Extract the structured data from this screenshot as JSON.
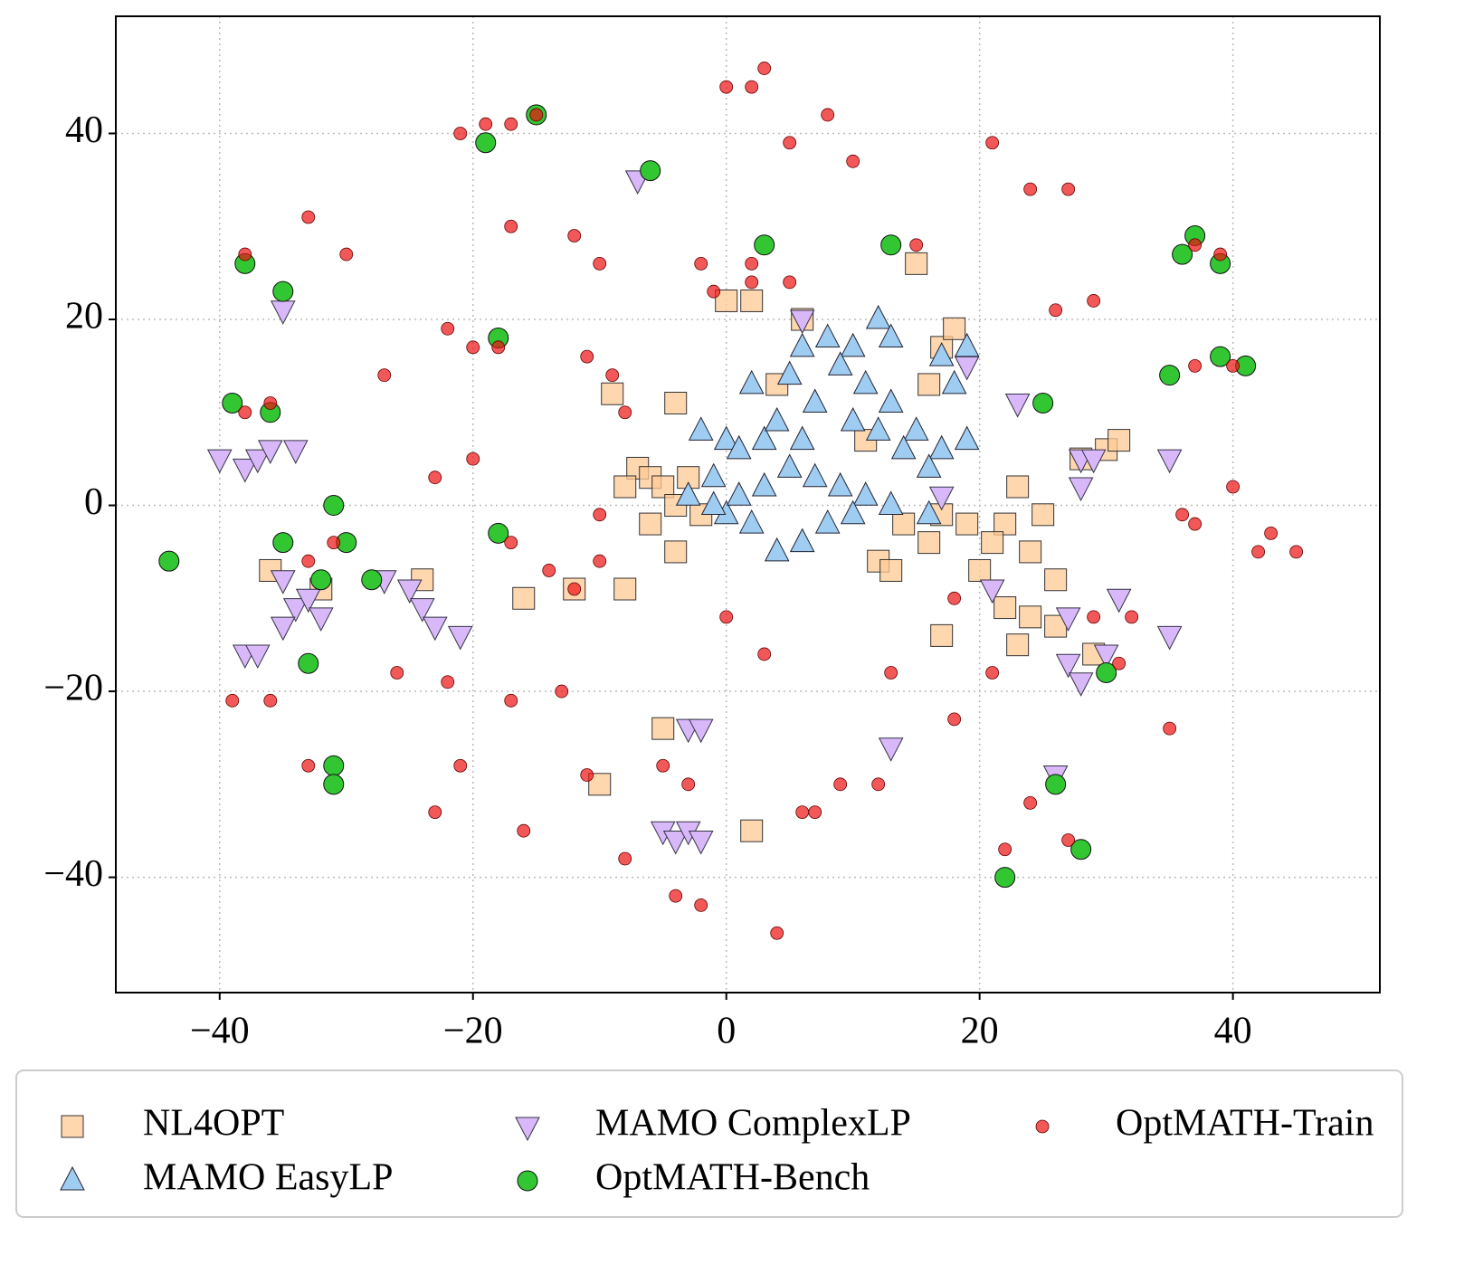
{
  "chart_data": {
    "type": "scatter",
    "xlim": [
      -48.2,
      51.6
    ],
    "ylim": [
      -52.4,
      52.6
    ],
    "xticks": [
      {
        "value": -40,
        "label": "−40"
      },
      {
        "value": -20,
        "label": "−20"
      },
      0,
      20,
      40
    ],
    "yticks": [
      {
        "value": -40,
        "label": "−40"
      },
      {
        "value": -20,
        "label": "−20"
      },
      0,
      20,
      40
    ],
    "grid": true,
    "legend": "bottom",
    "series": [
      {
        "name": "NL4OPT",
        "color": "#ffc994",
        "marker": "square",
        "x": [
          -7,
          -6,
          -5,
          -4,
          -6,
          -3,
          -8,
          -4,
          -8,
          -9,
          -4,
          0,
          2,
          6,
          4,
          11,
          17,
          18,
          16,
          22,
          23,
          24,
          25,
          26,
          20,
          21,
          19,
          16,
          17,
          14,
          12,
          13,
          22,
          24,
          23,
          26,
          17,
          29,
          28,
          30,
          31,
          -16,
          -12,
          -10,
          -5,
          2,
          -24,
          -32,
          -36,
          -2,
          15
        ],
        "values": [
          4,
          3,
          2,
          0,
          -2,
          3,
          2,
          -5,
          -9,
          12,
          11,
          22,
          22,
          20,
          13,
          7,
          17,
          19,
          13,
          -2,
          2,
          -5,
          -1,
          -8,
          -7,
          -4,
          -2,
          -4,
          -1,
          -2,
          -6,
          -7,
          -11,
          -12,
          -15,
          -13,
          -14,
          -16,
          5,
          6,
          7,
          -10,
          -9,
          -30,
          -24,
          -35,
          -8,
          -9,
          -7,
          -1,
          26
        ]
      },
      {
        "name": "MAMO EasyLP",
        "color": "#9fcdf2",
        "marker": "triangle-up",
        "x": [
          -2,
          0,
          1,
          3,
          4,
          2,
          5,
          6,
          8,
          10,
          12,
          13,
          9,
          11,
          13,
          12,
          10,
          7,
          6,
          5,
          7,
          9,
          11,
          13,
          10,
          8,
          6,
          4,
          2,
          0,
          -1,
          -3,
          -1,
          17,
          19,
          18,
          15,
          17,
          19,
          16,
          14,
          16,
          3,
          1
        ],
        "values": [
          8,
          7,
          6,
          7,
          9,
          13,
          14,
          17,
          18,
          17,
          20,
          18,
          15,
          13,
          11,
          8,
          9,
          11,
          7,
          4,
          3,
          2,
          1,
          0,
          -1,
          -2,
          -4,
          -5,
          -2,
          -1,
          0,
          1,
          3,
          16,
          17,
          13,
          8,
          6,
          7,
          -1,
          6,
          4,
          2,
          1
        ]
      },
      {
        "name": "MAMO ComplexLP",
        "color": "#d9b8fa",
        "marker": "triangle-down",
        "x": [
          -40,
          -38,
          -37,
          -36,
          -34,
          -35,
          -34,
          -33,
          -32,
          -35,
          -38,
          -37,
          -25,
          -24,
          -23,
          -21,
          -27,
          -7,
          -35,
          -5,
          -4,
          -3,
          -2,
          -3,
          -2,
          13,
          19,
          23,
          28,
          29,
          35,
          28,
          21,
          27,
          27,
          28,
          30,
          31,
          35,
          26,
          6,
          17
        ],
        "values": [
          5,
          4,
          5,
          6,
          6,
          -8,
          -11,
          -10,
          -12,
          -13,
          -16,
          -16,
          -9,
          -11,
          -13,
          -14,
          -8,
          35,
          21,
          -35,
          -36,
          -35,
          -36,
          -24,
          -24,
          -26,
          15,
          11,
          5,
          5,
          5,
          2,
          -9,
          -12,
          -17,
          -19,
          -16,
          -10,
          -14,
          -29,
          20,
          1
        ]
      },
      {
        "name": "OptMATH-Bench",
        "color": "#33c633",
        "marker": "circle",
        "x": [
          -19,
          -15,
          -6,
          3,
          13,
          25,
          37,
          36,
          39,
          35,
          39,
          41,
          -39,
          -36,
          -35,
          -38,
          -31,
          -35,
          -30,
          -32,
          -28,
          -44,
          -33,
          -31,
          -31,
          -18,
          22,
          26,
          28,
          30,
          -18
        ],
        "values": [
          39,
          42,
          36,
          28,
          28,
          11,
          29,
          27,
          26,
          14,
          16,
          15,
          11,
          10,
          23,
          26,
          0,
          -4,
          -4,
          -8,
          -8,
          -6,
          -17,
          -28,
          -30,
          -3,
          -40,
          -30,
          -37,
          -18,
          18
        ]
      },
      {
        "name": "OptMATH-Train",
        "color": "#ee1111",
        "marker": "dot",
        "x": [
          -19,
          -17,
          -15,
          -21,
          2,
          0,
          3,
          8,
          10,
          5,
          21,
          24,
          27,
          26,
          29,
          37,
          39,
          37,
          40,
          40,
          43,
          45,
          37,
          29,
          31,
          35,
          24,
          22,
          27,
          18,
          21,
          18,
          13,
          9,
          7,
          0,
          3,
          -2,
          -4,
          4,
          -5,
          -3,
          -11,
          -13,
          -17,
          -23,
          -16,
          -22,
          -26,
          -33,
          -39,
          -36,
          -33,
          -31,
          -38,
          -36,
          -38,
          -33,
          -30,
          -22,
          -20,
          -20,
          -23,
          -17,
          -14,
          -12,
          -10,
          -9,
          -11,
          -8,
          -10,
          -17,
          -12,
          -10,
          2,
          5,
          -2,
          15,
          -27,
          -18,
          6,
          12,
          -21,
          -8,
          36,
          42,
          32,
          2,
          -1
        ],
        "values": [
          41,
          41,
          42,
          40,
          45,
          45,
          47,
          42,
          37,
          39,
          39,
          34,
          34,
          21,
          22,
          28,
          27,
          15,
          15,
          2,
          -3,
          -5,
          -2,
          -12,
          -17,
          -24,
          -32,
          -37,
          -36,
          -10,
          -18,
          -23,
          -18,
          -30,
          -33,
          -12,
          -16,
          -43,
          -42,
          -46,
          -28,
          -30,
          -29,
          -20,
          -21,
          -33,
          -35,
          -19,
          -18,
          -28,
          -21,
          -21,
          -6,
          -4,
          10,
          11,
          27,
          31,
          27,
          19,
          17,
          5,
          3,
          -4,
          -7,
          -9,
          -6,
          14,
          16,
          10,
          -1,
          30,
          29,
          26,
          26,
          24,
          26,
          28,
          14,
          17,
          -33,
          -30,
          -28,
          -38,
          -1,
          -5,
          -12,
          24,
          23
        ]
      }
    ]
  }
}
